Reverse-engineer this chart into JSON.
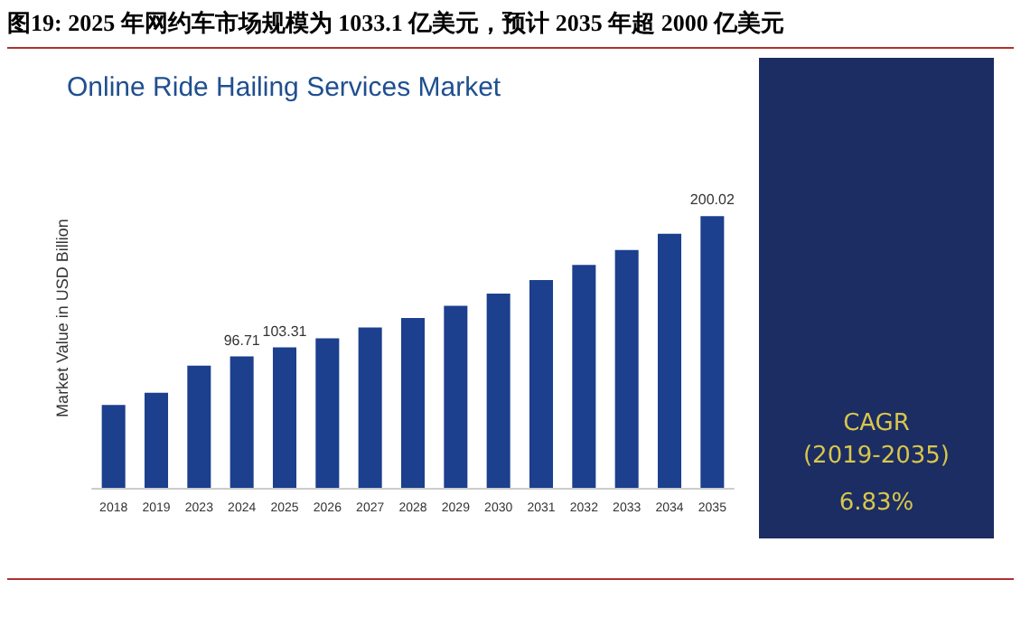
{
  "chart_data": {
    "type": "bar",
    "title": "图19:  2025 年网约车市场规模为 1033.1 亿美元，预计 2035 年超 2000 亿美元",
    "subtitle": "Online Ride Hailing Services Market",
    "ylabel": "Market Value in USD Billion",
    "categories": [
      "2018",
      "2019",
      "2023",
      "2024",
      "2025",
      "2026",
      "2027",
      "2028",
      "2029",
      "2030",
      "2031",
      "2032",
      "2033",
      "2034",
      "2035"
    ],
    "values": [
      61,
      70,
      90,
      96.71,
      103.31,
      110,
      118,
      125,
      134,
      143,
      153,
      164,
      175,
      187,
      200.02
    ],
    "value_labels": [
      null,
      null,
      null,
      "96.71",
      "103.31",
      null,
      null,
      null,
      null,
      null,
      null,
      null,
      null,
      null,
      "200.02"
    ],
    "color": "#1c3f8e",
    "annotations": [
      "CAGR",
      "(2019-2035)",
      "6.83%"
    ],
    "grid": false
  }
}
